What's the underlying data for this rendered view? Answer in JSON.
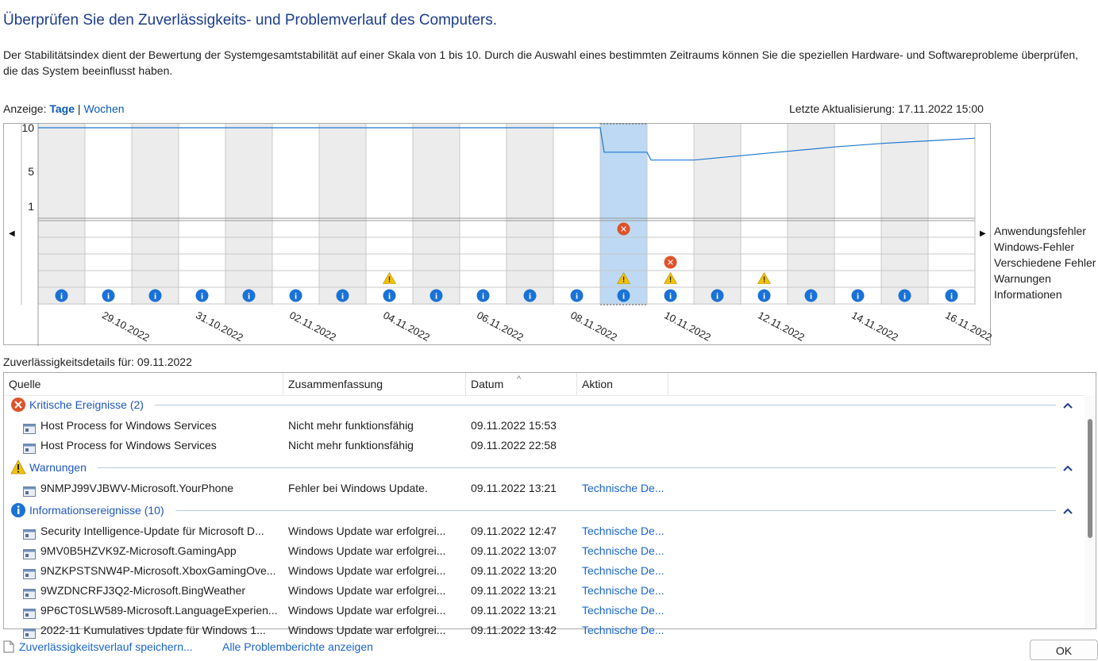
{
  "header": {
    "title": "Überprüfen Sie den Zuverlässigkeits- und Problemverlauf des Computers.",
    "description": "Der Stabilitätsindex dient der Bewertung der Systemgesamtstabilität auf einer Skala von 1 bis 10. Durch die Auswahl eines bestimmten Zeitraums können Sie die speziellen Hardware- und Softwareprobleme überprüfen, die das System beeinflusst haben."
  },
  "view": {
    "prefix": "Anzeige:",
    "days": "Tage",
    "separator": "|",
    "weeks": "Wochen",
    "selected": "Tage"
  },
  "last_update": "Letzte Aktualisierung: 17.11.2022 15:00",
  "chart_data": {
    "type": "line",
    "title": "",
    "ylim": [
      0,
      10
    ],
    "yticks": [
      "10",
      "5",
      "1"
    ],
    "x": [
      "28.10.2022",
      "29.10.2022",
      "30.10.2022",
      "31.10.2022",
      "01.11.2022",
      "02.11.2022",
      "03.11.2022",
      "04.11.2022",
      "05.11.2022",
      "06.11.2022",
      "07.11.2022",
      "08.11.2022",
      "09.11.2022",
      "10.11.2022",
      "11.11.2022",
      "12.11.2022",
      "13.11.2022",
      "14.11.2022",
      "15.11.2022",
      "16.11.2022"
    ],
    "xtick_labels": [
      "29.10.2022",
      "31.10.2022",
      "02.11.2022",
      "04.11.2022",
      "06.11.2022",
      "08.11.2022",
      "10.11.2022",
      "12.11.2022",
      "14.11.2022",
      "16.11.2022"
    ],
    "selected_date": "09.11.2022",
    "series": [
      {
        "values": [
          10,
          10,
          10,
          10,
          10,
          10,
          10,
          10,
          10,
          10,
          10,
          10,
          7.2,
          6.3,
          6.8,
          7.3,
          7.8,
          8.2,
          8.5,
          8.8
        ]
      }
    ],
    "event_rows": [
      "Anwendungsfehler",
      "Windows-Fehler",
      "Verschiedene Fehler",
      "Warnungen",
      "Informationen"
    ],
    "events": {
      "application_errors": [
        "09.11.2022"
      ],
      "misc_errors": [
        "10.11.2022"
      ],
      "warnings": [
        "04.11.2022",
        "09.11.2022",
        "10.11.2022",
        "12.11.2022"
      ],
      "information": [
        "28.10.2022",
        "29.10.2022",
        "30.10.2022",
        "31.10.2022",
        "01.11.2022",
        "02.11.2022",
        "03.11.2022",
        "04.11.2022",
        "05.11.2022",
        "06.11.2022",
        "07.11.2022",
        "08.11.2022",
        "09.11.2022",
        "10.11.2022",
        "11.11.2022",
        "12.11.2022",
        "13.11.2022",
        "14.11.2022",
        "15.11.2022",
        "16.11.2022"
      ]
    },
    "grid": true,
    "colors": {
      "line": "#1f77d0",
      "selection": "#bdd9f3",
      "shaded_col": "#ececec",
      "error": "#e0522a",
      "warning": "#f2c200",
      "info": "#1a72d6"
    }
  },
  "details": {
    "label": "Zuverlässigkeitsdetails für: 09.11.2022",
    "columns": [
      "Quelle",
      "Zusammenfassung",
      "Datum",
      "Aktion"
    ],
    "groups": [
      {
        "title": "Kritische Ereignisse (2)",
        "icon": "error-icon",
        "rows": [
          {
            "source": "Host Process for Windows Services",
            "summary": "Nicht mehr funktionsfähig",
            "date": "09.11.2022 15:53",
            "action": ""
          },
          {
            "source": "Host Process for Windows Services",
            "summary": "Nicht mehr funktionsfähig",
            "date": "09.11.2022 22:58",
            "action": ""
          }
        ]
      },
      {
        "title": "Warnungen",
        "icon": "warning-icon",
        "rows": [
          {
            "source": "9NMPJ99VJBWV-Microsoft.YourPhone",
            "summary": "Fehler bei Windows Update.",
            "date": "09.11.2022 13:21",
            "action": "Technische De..."
          }
        ]
      },
      {
        "title": "Informationsereignisse (10)",
        "icon": "info-icon",
        "rows": [
          {
            "source": "Security Intelligence-Update für Microsoft D...",
            "summary": "Windows Update war erfolgrei...",
            "date": "09.11.2022 12:47",
            "action": "Technische De..."
          },
          {
            "source": "9MV0B5HZVK9Z-Microsoft.GamingApp",
            "summary": "Windows Update war erfolgrei...",
            "date": "09.11.2022 13:07",
            "action": "Technische De..."
          },
          {
            "source": "9NZKPSTSNW4P-Microsoft.XboxGamingOve...",
            "summary": "Windows Update war erfolgrei...",
            "date": "09.11.2022 13:20",
            "action": "Technische De..."
          },
          {
            "source": "9WZDNCRFJ3Q2-Microsoft.BingWeather",
            "summary": "Windows Update war erfolgrei...",
            "date": "09.11.2022 13:21",
            "action": "Technische De..."
          },
          {
            "source": "9P6CT0SLW589-Microsoft.LanguageExperien...",
            "summary": "Windows Update war erfolgrei...",
            "date": "09.11.2022 13:21",
            "action": "Technische De..."
          },
          {
            "source": "2022-11 Kumulatives Update für Windows 1...",
            "summary": "Windows Update war erfolgrei...",
            "date": "09.11.2022 13:42",
            "action": "Technische De..."
          }
        ]
      }
    ]
  },
  "footer": {
    "save_link": "Zuverlässigkeitsverlauf speichern...",
    "all_reports_link": "Alle Problemberichte anzeigen",
    "ok_button": "OK"
  }
}
